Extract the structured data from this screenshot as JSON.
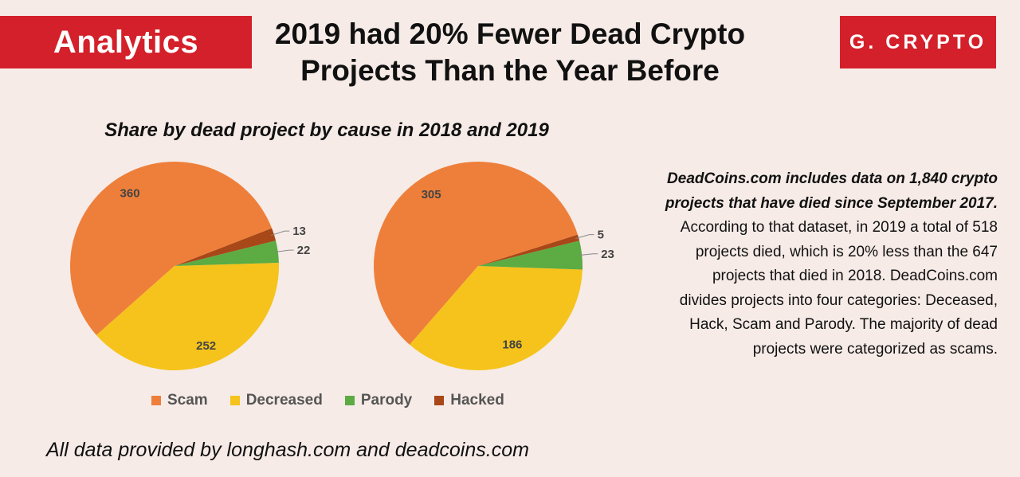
{
  "header": {
    "section": "Analytics",
    "title_line1": "2019 had 20% Fewer Dead Crypto",
    "title_line2": "Projects Than the Year Before",
    "brand": "G. CRYPTO"
  },
  "chart_data": {
    "type": "pie",
    "title": "Share by dead project by cause in 2018 and 2019",
    "categories": [
      "Scam",
      "Decreased",
      "Parody",
      "Hacked"
    ],
    "colors": [
      "#ee7f3a",
      "#f5c31b",
      "#5cab43",
      "#a84718"
    ],
    "series": [
      {
        "name": "2018",
        "values": [
          360,
          252,
          22,
          13
        ]
      },
      {
        "name": "2019",
        "values": [
          305,
          186,
          23,
          5
        ]
      }
    ],
    "legend_position": "bottom"
  },
  "article": {
    "lead": "DeadCoins.com includes data on 1,840 crypto projects that have died since September 2017.",
    "body": "According to that dataset, in 2019 a total of 518 projects died, which is 20% less than the 647 projects that died in 2018. DeadCoins.com divides projects into four categories: Deceased, Hack, Scam and Parody. The majority of dead projects were categorized as scams."
  },
  "footer": {
    "credit": "All data provided by longhash.com and deadcoins.com"
  }
}
